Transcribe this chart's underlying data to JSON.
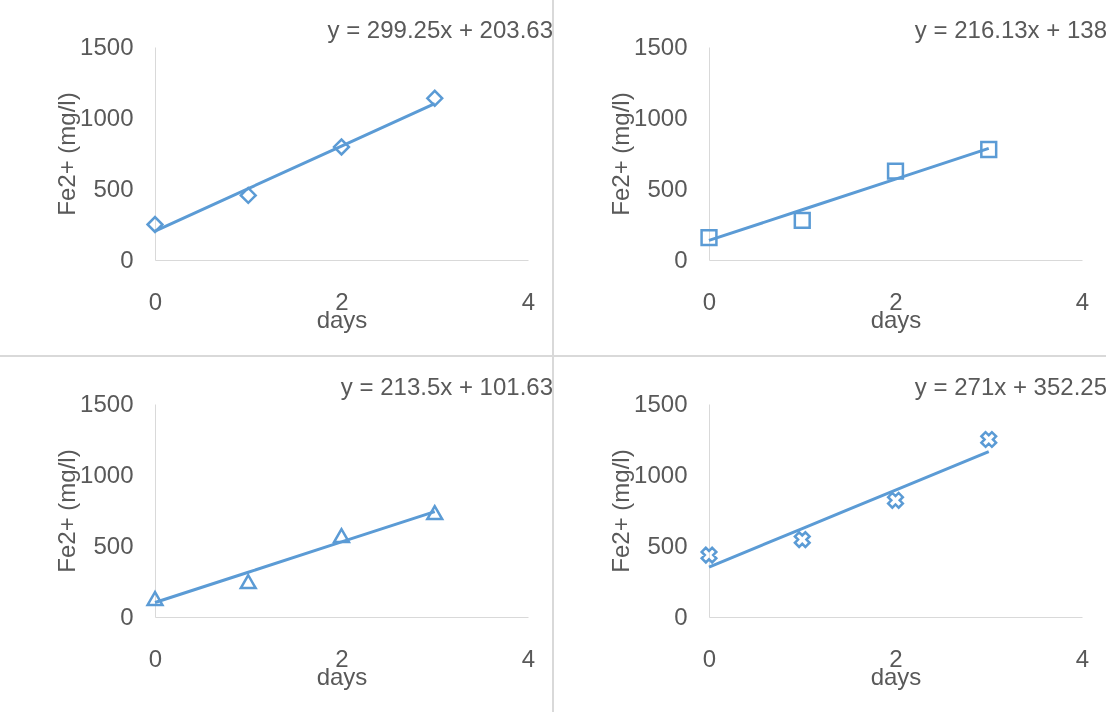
{
  "chart_data": [
    {
      "type": "scatter",
      "x": [
        0,
        1,
        2,
        3
      ],
      "xlabel": "days",
      "ylabel": "Fe2+ (mg/l)",
      "xlim": [
        0,
        4
      ],
      "xticks": [
        0,
        2,
        4
      ],
      "ylim": [
        0,
        1500
      ],
      "yticks": [
        0,
        500,
        1000,
        1500
      ],
      "grid": false,
      "annotations": [
        "y = 299.25x + 203.63"
      ],
      "series": [
        {
          "type": "scatter",
          "marker": "diamond",
          "color": "#5b9bd5",
          "values": [
            250,
            455,
            796,
            1139
          ]
        },
        {
          "type": "line",
          "color": "#5b9bd5",
          "values": [
            204,
            503,
            802,
            1101
          ]
        }
      ]
    },
    {
      "type": "scatter",
      "x": [
        0,
        1,
        2,
        3
      ],
      "xlabel": "days",
      "ylabel": "Fe2+ (mg/l)",
      "xlim": [
        0,
        4
      ],
      "xticks": [
        0,
        2,
        4
      ],
      "ylim": [
        0,
        1500
      ],
      "yticks": [
        0,
        500,
        1000,
        1500
      ],
      "grid": false,
      "annotations": [
        "y = 216.13x + 138"
      ],
      "series": [
        {
          "type": "scatter",
          "marker": "square",
          "color": "#5b9bd5",
          "values": [
            157,
            279,
            626,
            778
          ]
        },
        {
          "type": "line",
          "color": "#5b9bd5",
          "values": [
            138,
            354,
            570,
            786
          ]
        }
      ]
    },
    {
      "type": "scatter",
      "x": [
        0,
        1,
        2,
        3
      ],
      "xlabel": "days",
      "ylabel": "Fe2+ (mg/l)",
      "xlim": [
        0,
        4
      ],
      "xticks": [
        0,
        2,
        4
      ],
      "ylim": [
        0,
        1500
      ],
      "yticks": [
        0,
        500,
        1000,
        1500
      ],
      "grid": false,
      "annotations": [
        "y = 213.5x + 101.63"
      ],
      "series": [
        {
          "type": "scatter",
          "marker": "triangle",
          "color": "#5b9bd5",
          "values": [
            130,
            249,
            573,
            735
          ]
        },
        {
          "type": "line",
          "color": "#5b9bd5",
          "values": [
            102,
            315,
            529,
            742
          ]
        }
      ]
    },
    {
      "type": "scatter",
      "x": [
        0,
        1,
        2,
        3
      ],
      "xlabel": "days",
      "ylabel": "Fe2+ (mg/l)",
      "xlim": [
        0,
        4
      ],
      "xticks": [
        0,
        2,
        4
      ],
      "ylim": [
        0,
        1500
      ],
      "yticks": [
        0,
        500,
        1000,
        1500
      ],
      "grid": false,
      "annotations": [
        "y = 271x + 352.25"
      ],
      "series": [
        {
          "type": "scatter",
          "marker": "cross",
          "color": "#5b9bd5",
          "values": [
            436,
            545,
            822,
            1250
          ]
        },
        {
          "type": "line",
          "color": "#5b9bd5",
          "values": [
            352,
            623,
            894,
            1165
          ]
        }
      ]
    }
  ]
}
